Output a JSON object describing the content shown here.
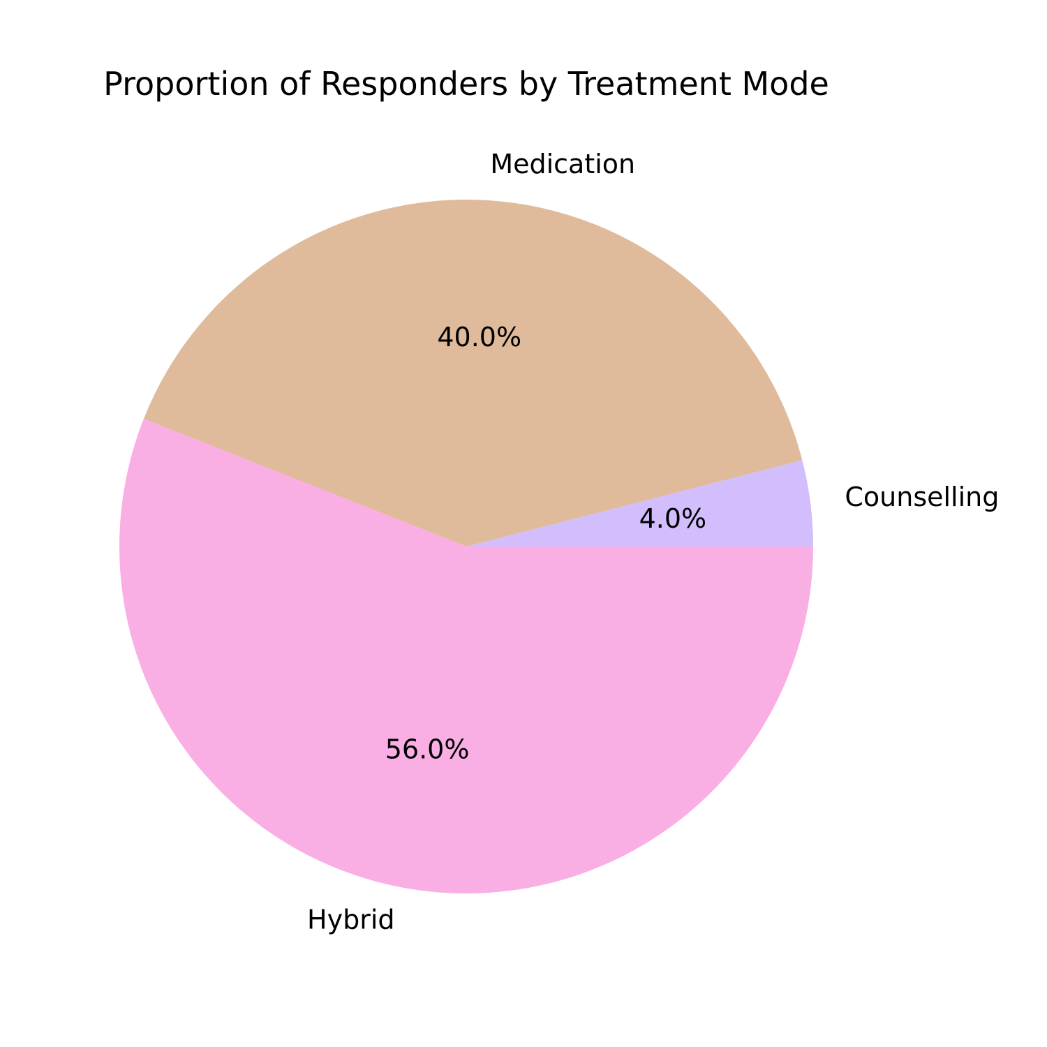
{
  "chart_data": {
    "type": "pie",
    "title": "Proportion of Responders by Treatment Mode",
    "slices": [
      {
        "label": "Counselling",
        "value": 4.0,
        "pct_label": "4.0%",
        "color": "#d2bdfd"
      },
      {
        "label": "Medication",
        "value": 40.0,
        "pct_label": "40.0%",
        "color": "#dfbb9b"
      },
      {
        "label": "Hybrid",
        "value": 56.0,
        "pct_label": "56.0%",
        "color": "#f9aee4"
      }
    ],
    "start_angle_deg": 0,
    "direction": "counterclockwise"
  }
}
